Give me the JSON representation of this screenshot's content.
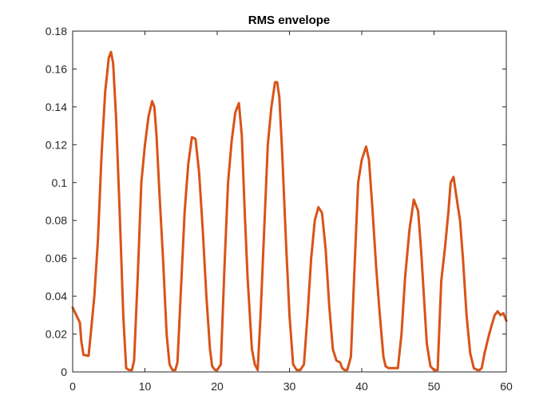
{
  "chart_data": {
    "type": "line",
    "title": "RMS envelope",
    "xlabel": "",
    "ylabel": "",
    "xlim": [
      0,
      60
    ],
    "ylim": [
      0,
      0.18
    ],
    "xticks": [
      0,
      10,
      20,
      30,
      40,
      50,
      60
    ],
    "yticks": [
      0,
      0.02,
      0.04,
      0.06,
      0.08,
      0.1,
      0.12,
      0.14,
      0.16,
      0.18
    ],
    "xtick_labels": [
      "0",
      "10",
      "20",
      "30",
      "40",
      "50",
      "60"
    ],
    "ytick_labels": [
      "0",
      "0.02",
      "0.04",
      "0.06",
      "0.08",
      "0.1",
      "0.12",
      "0.14",
      "0.16",
      "0.18"
    ],
    "grid": false,
    "line_color": "#D95319",
    "series": [
      {
        "x": [
          0,
          0.5,
          1,
          1.2,
          1.5,
          2.2,
          2.5,
          3,
          3.5,
          4,
          4.5,
          5,
          5.3,
          5.6,
          6,
          6.5,
          7,
          7.4,
          7.8,
          8.2,
          8.5,
          9,
          9.5,
          10,
          10.5,
          11,
          11.3,
          11.6,
          12,
          12.5,
          13,
          13.4,
          13.8,
          14.2,
          14.5,
          15,
          15.5,
          16,
          16.5,
          17,
          17.5,
          18,
          18.5,
          19,
          19.3,
          19.7,
          20,
          20.5,
          21,
          21.5,
          22,
          22.5,
          23,
          23.4,
          23.8,
          24.2,
          24.8,
          25.2,
          25.6,
          26,
          26.5,
          27,
          27.5,
          28,
          28.3,
          28.6,
          29,
          29.5,
          30,
          30.5,
          31,
          31.5,
          32,
          32.5,
          33,
          33.5,
          34,
          34.5,
          35,
          35.5,
          36,
          36.5,
          37,
          37.3,
          37.6,
          38,
          38.5,
          39,
          39.5,
          40,
          40.6,
          41,
          41.5,
          42,
          42.5,
          43,
          43.3,
          43.7,
          44.2,
          45,
          45.5,
          46,
          46.6,
          47.2,
          47.8,
          48.2,
          48.6,
          49,
          49.5,
          50,
          50.5,
          51,
          51.5,
          52,
          52.3,
          52.7,
          53.2,
          53.6,
          54,
          54.5,
          55,
          55.5,
          56,
          56.3,
          56.6,
          57,
          57.5,
          58,
          58.4,
          58.8,
          59.2,
          59.6,
          60
        ],
        "y": [
          0.034,
          0.03,
          0.026,
          0.016,
          0.009,
          0.0085,
          0.02,
          0.04,
          0.07,
          0.115,
          0.148,
          0.166,
          0.169,
          0.163,
          0.135,
          0.085,
          0.03,
          0.002,
          0.001,
          0.001,
          0.006,
          0.05,
          0.1,
          0.12,
          0.135,
          0.143,
          0.14,
          0.125,
          0.095,
          0.06,
          0.02,
          0.004,
          0.001,
          0.001,
          0.005,
          0.045,
          0.085,
          0.11,
          0.124,
          0.123,
          0.105,
          0.075,
          0.04,
          0.012,
          0.003,
          0.001,
          0.001,
          0.004,
          0.055,
          0.1,
          0.122,
          0.137,
          0.142,
          0.125,
          0.085,
          0.05,
          0.012,
          0.004,
          0.001,
          0.03,
          0.075,
          0.12,
          0.14,
          0.153,
          0.153,
          0.145,
          0.115,
          0.07,
          0.03,
          0.004,
          0.001,
          0.001,
          0.004,
          0.03,
          0.06,
          0.08,
          0.087,
          0.084,
          0.065,
          0.035,
          0.012,
          0.006,
          0.005,
          0.002,
          0.001,
          0.001,
          0.008,
          0.055,
          0.1,
          0.112,
          0.119,
          0.112,
          0.085,
          0.055,
          0.03,
          0.008,
          0.003,
          0.002,
          0.002,
          0.002,
          0.02,
          0.05,
          0.075,
          0.091,
          0.085,
          0.065,
          0.04,
          0.015,
          0.003,
          0.001,
          0.001,
          0.048,
          0.065,
          0.085,
          0.1,
          0.103,
          0.09,
          0.08,
          0.06,
          0.03,
          0.01,
          0.002,
          0.001,
          0.001,
          0.002,
          0.01,
          0.018,
          0.025,
          0.03,
          0.032,
          0.03,
          0.031,
          0.027
        ]
      }
    ]
  }
}
